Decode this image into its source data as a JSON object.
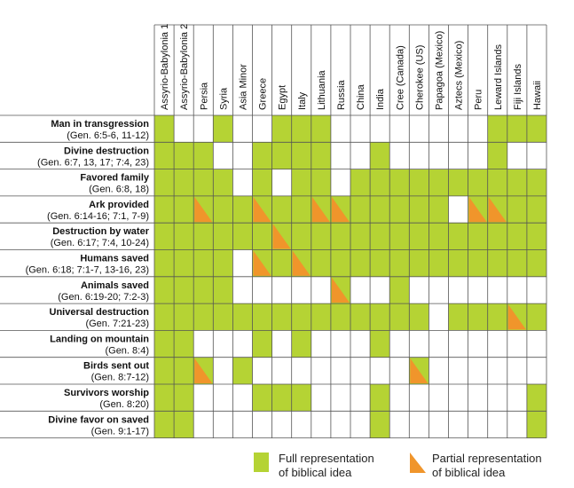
{
  "chart_data": {
    "type": "table",
    "columns": [
      "Assyrio-Babylonia 1",
      "Assyrio-Babylonia 2",
      "Persia",
      "Syria",
      "Asia Minor",
      "Greece",
      "Egypt",
      "Italy",
      "Lithuania",
      "Russia",
      "China",
      "India",
      "Cree (Canada)",
      "Cherokee (US)",
      "Papagoa (Mexico)",
      "Aztecs (Mexico)",
      "Peru",
      "Leward Islands",
      "Fiji Islands",
      "Hawaii"
    ],
    "rows": [
      {
        "title": "Man in transgression",
        "ref": "(Gen. 6:5-6, 11-12)",
        "cells": [
          "F",
          "",
          "",
          "F",
          "",
          "",
          "F",
          "F",
          "F",
          "",
          "",
          "",
          "",
          "",
          "",
          "",
          "",
          "F",
          "F",
          "F"
        ]
      },
      {
        "title": "Divine destruction",
        "ref": "(Gen. 6:7, 13, 17; 7:4, 23)",
        "cells": [
          "F",
          "F",
          "F",
          "",
          "",
          "F",
          "F",
          "F",
          "F",
          "",
          "",
          "F",
          "",
          "",
          "",
          "",
          "",
          "F",
          "",
          ""
        ]
      },
      {
        "title": "Favored family",
        "ref": "(Gen. 6:8, 18)",
        "cells": [
          "F",
          "F",
          "F",
          "F",
          "",
          "F",
          "",
          "F",
          "F",
          "",
          "F",
          "F",
          "F",
          "F",
          "F",
          "F",
          "F",
          "F",
          "F",
          "F"
        ]
      },
      {
        "title": "Ark provided",
        "ref": "(Gen. 6:14-16; 7:1, 7-9)",
        "cells": [
          "F",
          "F",
          "P",
          "F",
          "F",
          "P",
          "F",
          "F",
          "P",
          "P",
          "F",
          "F",
          "F",
          "F",
          "F",
          "",
          "P",
          "P",
          "F",
          "F"
        ]
      },
      {
        "title": "Destruction by water",
        "ref": "(Gen. 6:17; 7:4, 10-24)",
        "cells": [
          "F",
          "F",
          "F",
          "F",
          "F",
          "F",
          "P",
          "F",
          "F",
          "F",
          "F",
          "F",
          "F",
          "F",
          "F",
          "F",
          "F",
          "F",
          "F",
          "F"
        ]
      },
      {
        "title": "Humans saved",
        "ref": "(Gen. 6:18; 7:1-7, 13-16, 23)",
        "cells": [
          "F",
          "F",
          "F",
          "F",
          "",
          "P",
          "F",
          "P",
          "F",
          "F",
          "F",
          "F",
          "F",
          "F",
          "F",
          "F",
          "F",
          "F",
          "F",
          "F"
        ]
      },
      {
        "title": "Animals saved",
        "ref": "(Gen. 6:19-20; 7:2-3)",
        "cells": [
          "F",
          "F",
          "F",
          "F",
          "",
          "",
          "",
          "",
          "",
          "P",
          "",
          "",
          "F",
          "",
          "",
          "",
          "",
          "",
          "",
          ""
        ]
      },
      {
        "title": "Universal destruction",
        "ref": "(Gen. 7:21-23)",
        "cells": [
          "F",
          "F",
          "F",
          "F",
          "F",
          "F",
          "F",
          "F",
          "F",
          "F",
          "F",
          "F",
          "F",
          "F",
          "",
          "F",
          "F",
          "F",
          "P",
          "F"
        ]
      },
      {
        "title": "Landing on mountain",
        "ref": "(Gen. 8:4)",
        "cells": [
          "F",
          "F",
          "",
          "",
          "",
          "F",
          "",
          "F",
          "",
          "",
          "",
          "F",
          "",
          "",
          "",
          "",
          "",
          "",
          "",
          ""
        ]
      },
      {
        "title": "Birds sent out",
        "ref": "(Gen. 8:7-12)",
        "cells": [
          "F",
          "F",
          "P",
          "",
          "F",
          "",
          "",
          "",
          "",
          "",
          "",
          "",
          "",
          "P",
          "",
          "",
          "",
          "",
          "",
          ""
        ]
      },
      {
        "title": "Survivors worship",
        "ref": "(Gen. 8:20)",
        "cells": [
          "F",
          "F",
          "",
          "",
          "",
          "F",
          "F",
          "F",
          "",
          "",
          "",
          "F",
          "",
          "",
          "",
          "",
          "",
          "",
          "",
          "F"
        ]
      },
      {
        "title": "Divine favor on saved",
        "ref": "(Gen. 9:1-17)",
        "cells": [
          "F",
          "F",
          "",
          "",
          "",
          "",
          "",
          "",
          "",
          "",
          "",
          "F",
          "",
          "",
          "",
          "",
          "",
          "",
          "",
          "F"
        ]
      }
    ],
    "legend": [
      {
        "key": "F",
        "line1": "Full representation",
        "line2": "of biblical idea"
      },
      {
        "key": "P",
        "line1": "Partial representation",
        "line2": "of biblical idea"
      }
    ],
    "colors": {
      "full": "#b5d334",
      "partial": "#f0952b",
      "grid": "#555555",
      "background": "#ffffff"
    }
  }
}
